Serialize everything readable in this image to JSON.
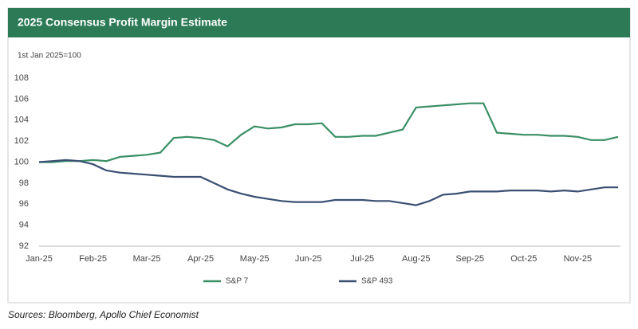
{
  "chart_data": {
    "type": "line",
    "title": "2025 Consensus Profit Margin Estimate",
    "subtitle": "1st Jan 2025=100",
    "source": "Sources: Bloomberg, Apollo Chief Economist",
    "categories": [
      "Jan-25",
      null,
      null,
      null,
      "Feb-25",
      null,
      null,
      null,
      "Mar-25",
      null,
      null,
      null,
      "Apr-25",
      null,
      null,
      null,
      "May-25",
      null,
      null,
      null,
      "Jun-25",
      null,
      null,
      null,
      "Jul-25",
      null,
      null,
      null,
      "Aug-25",
      null,
      null,
      null,
      "Sep-25",
      null,
      null,
      null,
      "Oct-25",
      null,
      null,
      null,
      "Nov-25",
      null,
      null,
      null
    ],
    "series": [
      {
        "name": "S&P 7",
        "color": "#3a8f64",
        "values": [
          100,
          100,
          100.1,
          100.1,
          100.2,
          100.1,
          100.5,
          100.6,
          100.7,
          100.9,
          102.3,
          102.4,
          102.3,
          102.1,
          101.5,
          102.6,
          103.4,
          103.2,
          103.3,
          103.6,
          103.6,
          103.7,
          102.4,
          102.4,
          102.5,
          102.5,
          102.8,
          103.1,
          105.2,
          105.3,
          105.4,
          105.5,
          105.6,
          105.6,
          102.8,
          102.7,
          102.6,
          102.6,
          102.5,
          102.5,
          102.4,
          102.1,
          102.1,
          102.4
        ]
      },
      {
        "name": "S&P 493",
        "color": "#3b4f73",
        "values": [
          100,
          100.1,
          100.2,
          100.1,
          99.8,
          99.2,
          99.0,
          98.9,
          98.8,
          98.7,
          98.6,
          98.6,
          98.6,
          98.0,
          97.4,
          97.0,
          96.7,
          96.5,
          96.3,
          96.2,
          96.2,
          96.2,
          96.4,
          96.4,
          96.4,
          96.3,
          96.3,
          96.1,
          95.9,
          96.3,
          96.9,
          97.0,
          97.2,
          97.2,
          97.2,
          97.3,
          97.3,
          97.3,
          97.2,
          97.3,
          97.2,
          97.4,
          97.6,
          97.6
        ]
      }
    ],
    "ylim": [
      92,
      108
    ],
    "yticks": [
      92,
      94,
      96,
      98,
      100,
      102,
      104,
      106,
      108
    ]
  }
}
